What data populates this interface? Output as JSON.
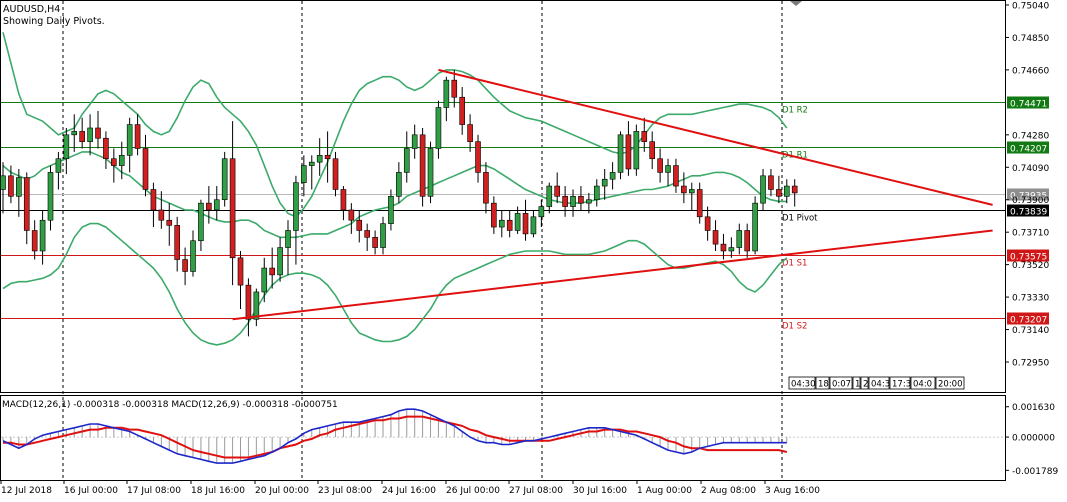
{
  "header": {
    "symbol_line": "AUDUSD,H4",
    "info_line": "Showing Daily Pivots."
  },
  "colors": {
    "bull": "#2f9e44",
    "bear": "#d12020",
    "bands": "#3caa6a",
    "trend": "#e01010",
    "macd_main": "#1d27c9",
    "macd_signal": "#e01010",
    "hist": "#9a9a9a",
    "r_level": "#127a12",
    "s_level": "#d01616",
    "pivot": "#000000",
    "price_tag": "#8e8e8e"
  },
  "price_axis": {
    "ticks": [
      "0.75040",
      "0.74850",
      "0.74660",
      "0.74280",
      "0.74090",
      "0.73900",
      "0.73710",
      "0.73520",
      "0.73330",
      "0.73140",
      "0.72950"
    ],
    "tick_values": [
      0.7504,
      0.7485,
      0.7466,
      0.7428,
      0.7409,
      0.739,
      0.7371,
      0.7352,
      0.7333,
      0.7314,
      0.7295
    ]
  },
  "pivot_levels": [
    {
      "label": "D1 R2",
      "price_label": "0.74471",
      "price": 0.74471,
      "kind": "r"
    },
    {
      "label": "D1 R1",
      "price_label": "0.74207",
      "price": 0.74207,
      "kind": "r"
    },
    {
      "label": "D1 Pivot",
      "price_label": "0.73839",
      "price": 0.73839,
      "kind": "pivot"
    },
    {
      "label": "D1 S1",
      "price_label": "0.73575",
      "price": 0.73575,
      "kind": "s"
    },
    {
      "label": "D1 S2",
      "price_label": "0.73207",
      "price": 0.73207,
      "kind": "s"
    }
  ],
  "current_price": {
    "label": "0.73935",
    "price": 0.73935
  },
  "time_axis": {
    "labels": [
      "12 Jul 2018",
      "16 Jul 00:00",
      "17 Jul 08:00",
      "18 Jul 16:00",
      "20 Jul 00:00",
      "23 Jul 08:00",
      "24 Jul 16:00",
      "26 Jul 00:00",
      "27 Jul 08:00",
      "30 Jul 16:00",
      "1 Aug 00:00",
      "2 Aug 08:00",
      "3 Aug 16:00"
    ]
  },
  "macd_panel": {
    "label": "MACD(12,26,1) -0.000318 -0.000318 MACD(12,26,9) -0.000318 -0.000751",
    "ticks": [
      "0.001630",
      "0.000000",
      "-0.001789"
    ],
    "tick_values": [
      0.00163,
      0.0,
      -0.001789
    ]
  },
  "period_buttons": [
    "04:30",
    "18:",
    "0:07",
    "1",
    "2",
    "04:3",
    "17:3",
    "04:0",
    "20:00"
  ],
  "chart_data": {
    "type": "candlestick",
    "symbol": "AUDUSD",
    "timeframe": "H4",
    "ylim": [
      0.7285,
      0.7509
    ],
    "candles": [
      [
        0.7396,
        0.7412,
        0.7382,
        0.7404
      ],
      [
        0.7404,
        0.741,
        0.7388,
        0.7392
      ],
      [
        0.7392,
        0.7408,
        0.738,
        0.7403
      ],
      [
        0.7403,
        0.7406,
        0.7364,
        0.7372
      ],
      [
        0.7372,
        0.7378,
        0.7355,
        0.736
      ],
      [
        0.736,
        0.7384,
        0.7352,
        0.7378
      ],
      [
        0.7378,
        0.741,
        0.7372,
        0.7406
      ],
      [
        0.7406,
        0.7418,
        0.7396,
        0.7414
      ],
      [
        0.7414,
        0.7432,
        0.7405,
        0.7428
      ],
      [
        0.7428,
        0.744,
        0.7418,
        0.743
      ],
      [
        0.743,
        0.7438,
        0.742,
        0.7424
      ],
      [
        0.7424,
        0.744,
        0.7416,
        0.7432
      ],
      [
        0.7432,
        0.7442,
        0.742,
        0.7426
      ],
      [
        0.7426,
        0.743,
        0.7408,
        0.7414
      ],
      [
        0.7414,
        0.742,
        0.74,
        0.741
      ],
      [
        0.741,
        0.7424,
        0.7402,
        0.7416
      ],
      [
        0.7416,
        0.7438,
        0.7406,
        0.7434
      ],
      [
        0.7434,
        0.744,
        0.7416,
        0.742
      ],
      [
        0.742,
        0.7428,
        0.7392,
        0.7396
      ],
      [
        0.7396,
        0.74,
        0.7374,
        0.7384
      ],
      [
        0.7384,
        0.7395,
        0.7373,
        0.7378
      ],
      [
        0.7378,
        0.7388,
        0.7363,
        0.7375
      ],
      [
        0.7375,
        0.738,
        0.7348,
        0.7355
      ],
      [
        0.7355,
        0.7362,
        0.734,
        0.7348
      ],
      [
        0.7348,
        0.7372,
        0.7345,
        0.7366
      ],
      [
        0.7366,
        0.739,
        0.736,
        0.7388
      ],
      [
        0.7388,
        0.7398,
        0.7376,
        0.7384
      ],
      [
        0.7384,
        0.7398,
        0.7378,
        0.739
      ],
      [
        0.739,
        0.7418,
        0.7386,
        0.7414
      ],
      [
        0.7414,
        0.7436,
        0.734,
        0.7356
      ],
      [
        0.7356,
        0.736,
        0.7326,
        0.734
      ],
      [
        0.734,
        0.7344,
        0.731,
        0.732
      ],
      [
        0.732,
        0.7338,
        0.7316,
        0.7336
      ],
      [
        0.7336,
        0.7356,
        0.733,
        0.735
      ],
      [
        0.735,
        0.7362,
        0.7338,
        0.7346
      ],
      [
        0.7346,
        0.7368,
        0.7342,
        0.7362
      ],
      [
        0.7362,
        0.7378,
        0.7346,
        0.7372
      ],
      [
        0.7372,
        0.7404,
        0.7352,
        0.74
      ],
      [
        0.74,
        0.7416,
        0.7392,
        0.741
      ],
      [
        0.741,
        0.7416,
        0.7396,
        0.7412
      ],
      [
        0.7412,
        0.7426,
        0.7404,
        0.7416
      ],
      [
        0.7416,
        0.743,
        0.74,
        0.7414
      ],
      [
        0.7414,
        0.7418,
        0.7392,
        0.7396
      ],
      [
        0.7396,
        0.7398,
        0.7378,
        0.7384
      ],
      [
        0.7384,
        0.7388,
        0.737,
        0.7378
      ],
      [
        0.7378,
        0.7384,
        0.7365,
        0.7372
      ],
      [
        0.7372,
        0.7376,
        0.736,
        0.7368
      ],
      [
        0.7368,
        0.7372,
        0.7358,
        0.7362
      ],
      [
        0.7362,
        0.738,
        0.7358,
        0.7376
      ],
      [
        0.7376,
        0.7396,
        0.7372,
        0.7392
      ],
      [
        0.7392,
        0.7412,
        0.7388,
        0.7406
      ],
      [
        0.7406,
        0.743,
        0.74,
        0.742
      ],
      [
        0.742,
        0.7434,
        0.7414,
        0.7428
      ],
      [
        0.7428,
        0.7432,
        0.7386,
        0.7392
      ],
      [
        0.7392,
        0.7424,
        0.7388,
        0.742
      ],
      [
        0.742,
        0.7448,
        0.7414,
        0.7444
      ],
      [
        0.7444,
        0.7462,
        0.7436,
        0.746
      ],
      [
        0.746,
        0.7466,
        0.7444,
        0.745
      ],
      [
        0.745,
        0.7456,
        0.7428,
        0.7434
      ],
      [
        0.7434,
        0.744,
        0.7418,
        0.7424
      ],
      [
        0.7424,
        0.7428,
        0.74,
        0.7406
      ],
      [
        0.7406,
        0.7412,
        0.7382,
        0.7388
      ],
      [
        0.7388,
        0.7392,
        0.737,
        0.7374
      ],
      [
        0.7374,
        0.7384,
        0.7368,
        0.7378
      ],
      [
        0.7378,
        0.7384,
        0.7368,
        0.7372
      ],
      [
        0.7372,
        0.7386,
        0.737,
        0.7382
      ],
      [
        0.7382,
        0.739,
        0.7366,
        0.737
      ],
      [
        0.737,
        0.7384,
        0.7368,
        0.738
      ],
      [
        0.738,
        0.739,
        0.7374,
        0.7386
      ],
      [
        0.7386,
        0.74,
        0.7382,
        0.7398
      ],
      [
        0.7398,
        0.7406,
        0.7388,
        0.7392
      ],
      [
        0.7392,
        0.7398,
        0.738,
        0.7386
      ],
      [
        0.7386,
        0.7396,
        0.738,
        0.7392
      ],
      [
        0.7392,
        0.7398,
        0.7384,
        0.7388
      ],
      [
        0.7388,
        0.7394,
        0.7382,
        0.739
      ],
      [
        0.739,
        0.7402,
        0.7386,
        0.7398
      ],
      [
        0.7398,
        0.7408,
        0.739,
        0.7402
      ],
      [
        0.7402,
        0.7412,
        0.7396,
        0.7406
      ],
      [
        0.7406,
        0.743,
        0.7402,
        0.7428
      ],
      [
        0.7428,
        0.7436,
        0.7404,
        0.7408
      ],
      [
        0.7408,
        0.7434,
        0.7404,
        0.743
      ],
      [
        0.743,
        0.7438,
        0.7418,
        0.7424
      ],
      [
        0.7424,
        0.743,
        0.7408,
        0.7414
      ],
      [
        0.7414,
        0.742,
        0.74,
        0.7406
      ],
      [
        0.7406,
        0.7414,
        0.7398,
        0.741
      ],
      [
        0.741,
        0.7414,
        0.7394,
        0.7398
      ],
      [
        0.7398,
        0.7406,
        0.7388,
        0.7394
      ],
      [
        0.7394,
        0.74,
        0.7384,
        0.7396
      ],
      [
        0.7396,
        0.74,
        0.7376,
        0.738
      ],
      [
        0.738,
        0.7386,
        0.7366,
        0.7372
      ],
      [
        0.7372,
        0.7378,
        0.736,
        0.7364
      ],
      [
        0.7364,
        0.737,
        0.7355,
        0.736
      ],
      [
        0.736,
        0.7368,
        0.7356,
        0.7362
      ],
      [
        0.7362,
        0.7376,
        0.7358,
        0.7372
      ],
      [
        0.7372,
        0.7376,
        0.7356,
        0.736
      ],
      [
        0.736,
        0.7392,
        0.7358,
        0.7388
      ],
      [
        0.7388,
        0.7408,
        0.7384,
        0.7404
      ],
      [
        0.7404,
        0.7408,
        0.7392,
        0.7396
      ],
      [
        0.7396,
        0.7404,
        0.7388,
        0.7392
      ],
      [
        0.7392,
        0.7402,
        0.7388,
        0.7398
      ],
      [
        0.7398,
        0.7402,
        0.7386,
        0.7394
      ]
    ],
    "bollinger": {
      "upper": [
        0.7488,
        0.747,
        0.7452,
        0.744,
        0.7438,
        0.7436,
        0.7432,
        0.7428,
        0.743,
        0.7432,
        0.744,
        0.7446,
        0.7452,
        0.7454,
        0.7452,
        0.7448,
        0.7444,
        0.744,
        0.7434,
        0.743,
        0.7428,
        0.743,
        0.7438,
        0.7448,
        0.7456,
        0.746,
        0.7458,
        0.745,
        0.7444,
        0.744,
        0.7436,
        0.743,
        0.7422,
        0.741,
        0.7398,
        0.7388,
        0.7382,
        0.738,
        0.7385,
        0.7392,
        0.7402,
        0.7412,
        0.7424,
        0.7436,
        0.7446,
        0.7454,
        0.7458,
        0.746,
        0.7462,
        0.7462,
        0.746,
        0.7456,
        0.7454,
        0.7456,
        0.746,
        0.7464,
        0.7466,
        0.7466,
        0.7465,
        0.7463,
        0.746,
        0.7455,
        0.745,
        0.7446,
        0.7442,
        0.744,
        0.7438,
        0.7437,
        0.7436,
        0.7434,
        0.7432,
        0.743,
        0.7428,
        0.7426,
        0.7424,
        0.7422,
        0.742,
        0.7418,
        0.7417,
        0.7418,
        0.7422,
        0.7428,
        0.7434,
        0.7438,
        0.744,
        0.744,
        0.744,
        0.744,
        0.7441,
        0.7442,
        0.7443,
        0.7444,
        0.7445,
        0.7446,
        0.7446,
        0.7445,
        0.7444,
        0.7442,
        0.7438,
        0.7432
      ],
      "middle": [
        0.741,
        0.7406,
        0.7404,
        0.7402,
        0.7404,
        0.7408,
        0.741,
        0.7412,
        0.7414,
        0.7416,
        0.7418,
        0.7418,
        0.7416,
        0.7414,
        0.741,
        0.7406,
        0.7404,
        0.74,
        0.7396,
        0.7392,
        0.739,
        0.7388,
        0.7386,
        0.7384,
        0.7384,
        0.7382,
        0.738,
        0.7378,
        0.7377,
        0.7377,
        0.7378,
        0.7378,
        0.7376,
        0.7372,
        0.737,
        0.7368,
        0.7368,
        0.7368,
        0.7369,
        0.737,
        0.737,
        0.737,
        0.7372,
        0.7374,
        0.7376,
        0.738,
        0.7382,
        0.7384,
        0.7385,
        0.7386,
        0.7388,
        0.7392,
        0.7394,
        0.7396,
        0.7398,
        0.74,
        0.7402,
        0.7404,
        0.7406,
        0.7408,
        0.741,
        0.741,
        0.7408,
        0.7405,
        0.7402,
        0.7399,
        0.7396,
        0.7394,
        0.7392,
        0.739,
        0.7389,
        0.7388,
        0.7388,
        0.7388,
        0.7389,
        0.739,
        0.7391,
        0.7392,
        0.7393,
        0.7394,
        0.7395,
        0.7396,
        0.7396,
        0.7397,
        0.7398,
        0.74,
        0.7402,
        0.7404,
        0.7404,
        0.7405,
        0.7406,
        0.7406,
        0.7405,
        0.7403,
        0.74,
        0.7396,
        0.7392,
        0.739,
        0.7389,
        0.7389
      ],
      "lower": [
        0.7338,
        0.7341,
        0.7342,
        0.7342,
        0.7343,
        0.7344,
        0.7346,
        0.735,
        0.7358,
        0.7368,
        0.7374,
        0.7376,
        0.7376,
        0.7374,
        0.737,
        0.7366,
        0.7362,
        0.7358,
        0.7354,
        0.735,
        0.7344,
        0.7336,
        0.7326,
        0.7318,
        0.7312,
        0.7308,
        0.7306,
        0.7305,
        0.7306,
        0.7308,
        0.7312,
        0.7318,
        0.7326,
        0.7334,
        0.734,
        0.7344,
        0.7346,
        0.7347,
        0.7347,
        0.7346,
        0.7344,
        0.734,
        0.7334,
        0.7326,
        0.7318,
        0.7312,
        0.731,
        0.7308,
        0.7307,
        0.7307,
        0.7308,
        0.731,
        0.7314,
        0.732,
        0.7326,
        0.7334,
        0.734,
        0.7344,
        0.7346,
        0.7348,
        0.735,
        0.7352,
        0.7354,
        0.7356,
        0.7358,
        0.7359,
        0.736,
        0.736,
        0.736,
        0.736,
        0.7359,
        0.7358,
        0.7358,
        0.7358,
        0.7358,
        0.7359,
        0.736,
        0.7362,
        0.7364,
        0.7366,
        0.7366,
        0.7364,
        0.736,
        0.7356,
        0.7352,
        0.735,
        0.735,
        0.7351,
        0.7352,
        0.7353,
        0.7354,
        0.7352,
        0.7348,
        0.7342,
        0.7338,
        0.7336,
        0.734,
        0.7346,
        0.7352,
        0.7356
      ]
    },
    "trendlines": [
      {
        "from_bar": 55,
        "from_price": 0.7466,
        "to_bar": 125,
        "to_price": 0.7387
      },
      {
        "from_bar": 29,
        "from_price": 0.732,
        "to_bar": 125,
        "to_price": 0.7372
      }
    ],
    "macd": {
      "ylim": [
        -0.0022,
        0.0021
      ],
      "main": [
        -0.0002,
        -0.0004,
        -0.0006,
        -0.0004,
        -0.0001,
        0.0001,
        0.0002,
        0.0003,
        0.0004,
        0.0005,
        0.0006,
        0.0007,
        0.0007,
        0.0006,
        0.0005,
        0.0004,
        0.0003,
        0.0001,
        -0.0001,
        -0.0003,
        -0.0005,
        -0.0007,
        -0.0009,
        -0.001,
        -0.0011,
        -0.0012,
        -0.0013,
        -0.0014,
        -0.0014,
        -0.0014,
        -0.0013,
        -0.0012,
        -0.0011,
        -0.001,
        -0.0008,
        -0.0006,
        -0.0003,
        -0.0001,
        0.0002,
        0.0004,
        0.0005,
        0.0006,
        0.0007,
        0.0008,
        0.0008,
        0.0008,
        0.0009,
        0.001,
        0.0011,
        0.0012,
        0.0014,
        0.0015,
        0.0015,
        0.0014,
        0.0012,
        0.001,
        0.0008,
        0.0006,
        0.0003,
        0.0,
        -0.0002,
        -0.0003,
        -0.0003,
        -0.0004,
        -0.0004,
        -0.0003,
        -0.0002,
        -0.0002,
        -0.0001,
        0.0,
        0.0001,
        0.0002,
        0.0003,
        0.0004,
        0.0005,
        0.0005,
        0.0005,
        0.0004,
        0.0003,
        0.0002,
        0.0001,
        -0.0001,
        -0.0003,
        -0.0005,
        -0.0007,
        -0.0008,
        -0.0009,
        -0.0008,
        -0.0006,
        -0.0005,
        -0.0004,
        -0.0003,
        -0.0003,
        -0.0003,
        -0.0003,
        -0.0003,
        -0.0003,
        -0.0003,
        -0.0003,
        -0.0003
      ],
      "signal": [
        -0.0003,
        -0.0003,
        -0.0004,
        -0.0004,
        -0.0003,
        -0.0002,
        -0.0001,
        0.0,
        0.0001,
        0.0002,
        0.0003,
        0.0004,
        0.0004,
        0.0005,
        0.0005,
        0.0005,
        0.0004,
        0.0004,
        0.0003,
        0.0002,
        0.0001,
        -0.0001,
        -0.0003,
        -0.0005,
        -0.0007,
        -0.0008,
        -0.0009,
        -0.001,
        -0.0011,
        -0.0011,
        -0.0011,
        -0.0011,
        -0.001,
        -0.0009,
        -0.0008,
        -0.0006,
        -0.0005,
        -0.0004,
        -0.0002,
        -0.0001,
        0.0001,
        0.0002,
        0.0004,
        0.0005,
        0.0006,
        0.0007,
        0.0008,
        0.0009,
        0.0009,
        0.001,
        0.001,
        0.0011,
        0.0011,
        0.0011,
        0.001,
        0.0009,
        0.0008,
        0.0007,
        0.0006,
        0.0004,
        0.0003,
        0.0001,
        0.0,
        -0.0001,
        -0.0002,
        -0.0002,
        -0.0002,
        -0.0002,
        -0.0002,
        -0.0002,
        -0.0001,
        0.0,
        0.0001,
        0.0002,
        0.0003,
        0.0003,
        0.0004,
        0.0004,
        0.0004,
        0.0003,
        0.0003,
        0.0002,
        0.0001,
        0.0,
        -0.0002,
        -0.0003,
        -0.0005,
        -0.0006,
        -0.0006,
        -0.0007,
        -0.0007,
        -0.0007,
        -0.0007,
        -0.0007,
        -0.0007,
        -0.0007,
        -0.0007,
        -0.0007,
        -0.0007,
        -0.0008
      ]
    }
  }
}
